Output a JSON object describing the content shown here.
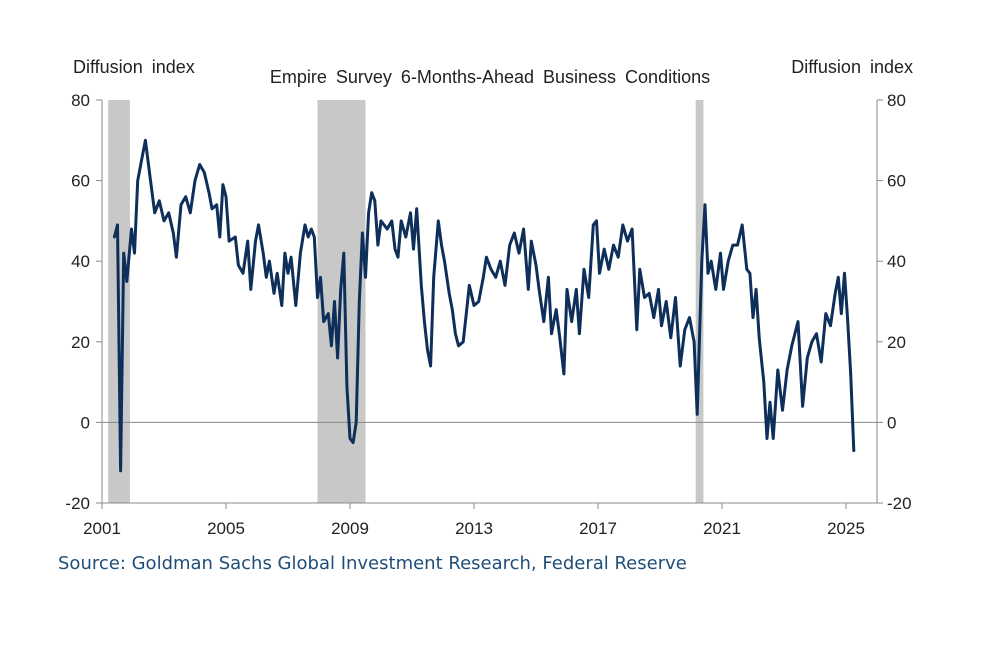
{
  "chart_data": {
    "type": "line",
    "title": "Empire Survey 6-Months-Ahead Business Conditions",
    "ylabel_left": "Diffusion index",
    "ylabel_right": "Diffusion index",
    "ylim": [
      -20,
      80
    ],
    "yticks": [
      80,
      60,
      40,
      20,
      0,
      -20
    ],
    "xlim": [
      2001,
      2026
    ],
    "xticks": [
      2001,
      2005,
      2009,
      2013,
      2017,
      2021,
      2025
    ],
    "line_color": "#0d2f5a",
    "recession_color": "#c8c8c8",
    "recessions": [
      [
        2001.2,
        2001.9
      ],
      [
        2007.95,
        2009.5
      ],
      [
        2020.15,
        2020.4
      ]
    ],
    "series": [
      {
        "name": "Empire Survey 6-Months-Ahead Business Conditions",
        "points": [
          [
            2001.4,
            46
          ],
          [
            2001.5,
            49
          ],
          [
            2001.6,
            -12
          ],
          [
            2001.7,
            42
          ],
          [
            2001.8,
            35
          ],
          [
            2001.95,
            48
          ],
          [
            2002.05,
            42
          ],
          [
            2002.15,
            60
          ],
          [
            2002.3,
            66
          ],
          [
            2002.4,
            70
          ],
          [
            2002.55,
            61
          ],
          [
            2002.7,
            52
          ],
          [
            2002.85,
            55
          ],
          [
            2003.0,
            50
          ],
          [
            2003.15,
            52
          ],
          [
            2003.3,
            47
          ],
          [
            2003.4,
            41
          ],
          [
            2003.55,
            54
          ],
          [
            2003.7,
            56
          ],
          [
            2003.85,
            52
          ],
          [
            2004.0,
            60
          ],
          [
            2004.15,
            64
          ],
          [
            2004.3,
            62
          ],
          [
            2004.45,
            57
          ],
          [
            2004.55,
            53
          ],
          [
            2004.7,
            54
          ],
          [
            2004.8,
            46
          ],
          [
            2004.9,
            59
          ],
          [
            2005.0,
            56
          ],
          [
            2005.1,
            45
          ],
          [
            2005.3,
            46
          ],
          [
            2005.4,
            39
          ],
          [
            2005.55,
            37
          ],
          [
            2005.7,
            45
          ],
          [
            2005.8,
            33
          ],
          [
            2005.95,
            45
          ],
          [
            2006.05,
            49
          ],
          [
            2006.2,
            42
          ],
          [
            2006.3,
            36
          ],
          [
            2006.4,
            40
          ],
          [
            2006.55,
            32
          ],
          [
            2006.65,
            37
          ],
          [
            2006.8,
            29
          ],
          [
            2006.9,
            42
          ],
          [
            2007.0,
            37
          ],
          [
            2007.1,
            41
          ],
          [
            2007.25,
            29
          ],
          [
            2007.4,
            42
          ],
          [
            2007.55,
            49
          ],
          [
            2007.65,
            46
          ],
          [
            2007.75,
            48
          ],
          [
            2007.85,
            46
          ],
          [
            2007.95,
            31
          ],
          [
            2008.05,
            36
          ],
          [
            2008.15,
            25
          ],
          [
            2008.3,
            27
          ],
          [
            2008.4,
            19
          ],
          [
            2008.5,
            30
          ],
          [
            2008.6,
            16
          ],
          [
            2008.7,
            33
          ],
          [
            2008.8,
            42
          ],
          [
            2008.9,
            9
          ],
          [
            2009.0,
            -4
          ],
          [
            2009.1,
            -5
          ],
          [
            2009.2,
            0
          ],
          [
            2009.3,
            30
          ],
          [
            2009.4,
            47
          ],
          [
            2009.5,
            36
          ],
          [
            2009.6,
            52
          ],
          [
            2009.7,
            57
          ],
          [
            2009.8,
            55
          ],
          [
            2009.9,
            44
          ],
          [
            2010.0,
            50
          ],
          [
            2010.2,
            48
          ],
          [
            2010.35,
            50
          ],
          [
            2010.45,
            43
          ],
          [
            2010.55,
            41
          ],
          [
            2010.65,
            50
          ],
          [
            2010.8,
            46
          ],
          [
            2010.95,
            52
          ],
          [
            2011.05,
            43
          ],
          [
            2011.15,
            53
          ],
          [
            2011.3,
            34
          ],
          [
            2011.4,
            25
          ],
          [
            2011.5,
            18
          ],
          [
            2011.6,
            14
          ],
          [
            2011.7,
            36
          ],
          [
            2011.85,
            50
          ],
          [
            2011.95,
            44
          ],
          [
            2012.05,
            40
          ],
          [
            2012.2,
            32
          ],
          [
            2012.3,
            28
          ],
          [
            2012.4,
            22
          ],
          [
            2012.5,
            19
          ],
          [
            2012.65,
            20
          ],
          [
            2012.75,
            27
          ],
          [
            2012.85,
            34
          ],
          [
            2013.0,
            29
          ],
          [
            2013.15,
            30
          ],
          [
            2013.3,
            36
          ],
          [
            2013.4,
            41
          ],
          [
            2013.55,
            38
          ],
          [
            2013.7,
            36
          ],
          [
            2013.85,
            40
          ],
          [
            2014.0,
            34
          ],
          [
            2014.15,
            44
          ],
          [
            2014.3,
            47
          ],
          [
            2014.45,
            42
          ],
          [
            2014.6,
            48
          ],
          [
            2014.75,
            33
          ],
          [
            2014.85,
            45
          ],
          [
            2015.0,
            39
          ],
          [
            2015.1,
            33
          ],
          [
            2015.25,
            25
          ],
          [
            2015.4,
            36
          ],
          [
            2015.5,
            22
          ],
          [
            2015.65,
            28
          ],
          [
            2015.75,
            22
          ],
          [
            2015.9,
            12
          ],
          [
            2016.0,
            33
          ],
          [
            2016.15,
            25
          ],
          [
            2016.3,
            33
          ],
          [
            2016.4,
            22
          ],
          [
            2016.55,
            38
          ],
          [
            2016.7,
            31
          ],
          [
            2016.85,
            49
          ],
          [
            2016.95,
            50
          ],
          [
            2017.05,
            37
          ],
          [
            2017.2,
            43
          ],
          [
            2017.35,
            38
          ],
          [
            2017.5,
            44
          ],
          [
            2017.65,
            41
          ],
          [
            2017.8,
            49
          ],
          [
            2017.95,
            45
          ],
          [
            2018.1,
            48
          ],
          [
            2018.25,
            23
          ],
          [
            2018.35,
            38
          ],
          [
            2018.5,
            31
          ],
          [
            2018.65,
            32
          ],
          [
            2018.8,
            26
          ],
          [
            2018.95,
            33
          ],
          [
            2019.05,
            24
          ],
          [
            2019.2,
            30
          ],
          [
            2019.35,
            21
          ],
          [
            2019.5,
            31
          ],
          [
            2019.65,
            14
          ],
          [
            2019.8,
            23
          ],
          [
            2019.95,
            26
          ],
          [
            2020.1,
            20
          ],
          [
            2020.2,
            2
          ],
          [
            2020.35,
            40
          ],
          [
            2020.45,
            54
          ],
          [
            2020.55,
            37
          ],
          [
            2020.65,
            40
          ],
          [
            2020.8,
            33
          ],
          [
            2020.95,
            42
          ],
          [
            2021.05,
            33
          ],
          [
            2021.2,
            40
          ],
          [
            2021.35,
            44
          ],
          [
            2021.5,
            44
          ],
          [
            2021.65,
            49
          ],
          [
            2021.8,
            38
          ],
          [
            2021.9,
            37
          ],
          [
            2022.0,
            26
          ],
          [
            2022.1,
            33
          ],
          [
            2022.2,
            21
          ],
          [
            2022.35,
            10
          ],
          [
            2022.45,
            -4
          ],
          [
            2022.55,
            5
          ],
          [
            2022.65,
            -4
          ],
          [
            2022.8,
            13
          ],
          [
            2022.95,
            3
          ],
          [
            2023.1,
            13
          ],
          [
            2023.25,
            19
          ],
          [
            2023.45,
            25
          ],
          [
            2023.6,
            4
          ],
          [
            2023.75,
            16
          ],
          [
            2023.9,
            20
          ],
          [
            2024.05,
            22
          ],
          [
            2024.2,
            15
          ],
          [
            2024.35,
            27
          ],
          [
            2024.5,
            24
          ],
          [
            2024.65,
            32
          ],
          [
            2024.75,
            36
          ],
          [
            2024.85,
            27
          ],
          [
            2024.95,
            37
          ],
          [
            2025.05,
            26
          ],
          [
            2025.15,
            12
          ],
          [
            2025.25,
            -7
          ]
        ]
      }
    ]
  },
  "source": "Source: Goldman Sachs Global Investment Research, Federal Reserve"
}
